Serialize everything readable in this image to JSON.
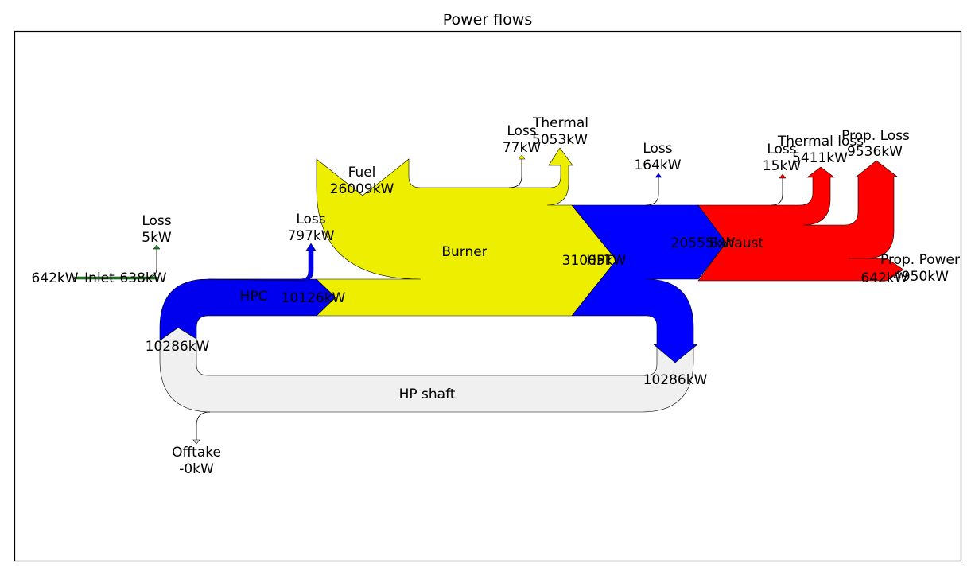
{
  "title": "Power flows",
  "colors": {
    "inlet": "#228b22",
    "hpc": "#0000ee",
    "burner": "#eeee00",
    "hpt": "#0000ff",
    "exhaust": "#ff0000",
    "shaft": "#f0f0f0",
    "frame": "#000000"
  },
  "labels": {
    "inlet_in_value": "642kW",
    "inlet_name": "Inlet",
    "inlet_out_value": "638kW",
    "inlet_loss_name": "Loss",
    "inlet_loss_value": "5kW",
    "hpc_name": "HPC",
    "hpc_in_value": "10286kW",
    "hpc_out_value": "10126kW",
    "hpc_loss_name": "Loss",
    "hpc_loss_value": "797kW",
    "fuel_name": "Fuel",
    "fuel_value": "26009kW",
    "burner_name": "Burner",
    "burner_loss_name": "Loss",
    "burner_loss_value": "77kW",
    "burner_thermal_name": "Thermal",
    "burner_thermal_value": "5053kW",
    "hpt_in_value": "31005kW",
    "hpt_name": "HPT",
    "hpt_loss_name": "Loss",
    "hpt_loss_value": "164kW",
    "hpt_out_value": "10286kW",
    "exhaust_in_value": "20555kW",
    "exhaust_name": "Exhaust",
    "exhaust_loss_name": "Loss",
    "exhaust_loss_value": "15kW",
    "exhaust_thermal_name": "Thermal loss",
    "exhaust_thermal_value": "5411kW",
    "exhaust_prop_loss_name": "Prop. Loss",
    "exhaust_prop_loss_value": "9536kW",
    "exhaust_prop_power_name": "Prop. Power",
    "exhaust_prop_power_value": "4950kW",
    "exhaust_ram_value": "642kW",
    "shaft_name": "HP shaft",
    "offtake_name": "Offtake",
    "offtake_value": "-0kW"
  }
}
